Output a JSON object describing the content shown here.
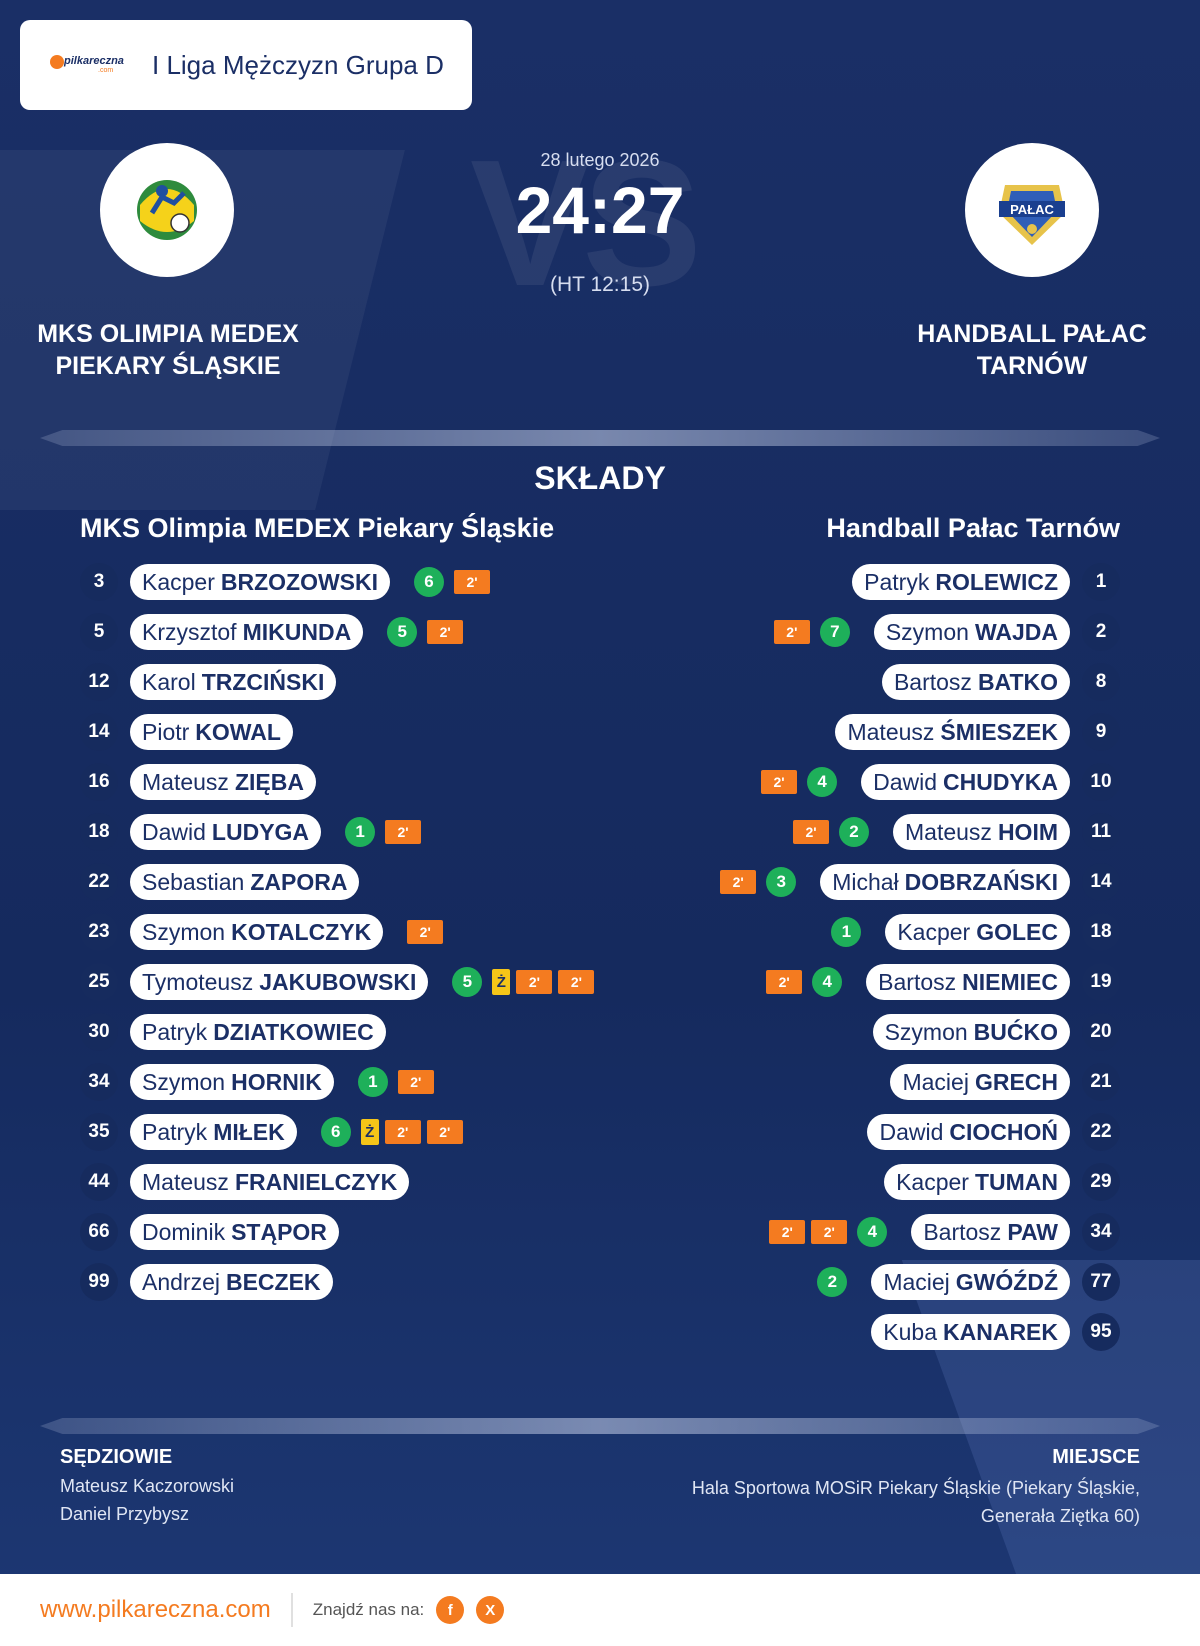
{
  "league": {
    "title": "I Liga Mężczyzn Grupa D",
    "logo_text": "pilkareczna",
    "logo_sub": ".com"
  },
  "match": {
    "date": "28 lutego 2026",
    "score": "24:27",
    "halftime": "(HT 12:15)",
    "vs_watermark": "VS"
  },
  "home": {
    "name_line1": "MKS OLIMPIA MEDEX",
    "name_line2": "PIEKARY ŚLĄSKIE",
    "squad_title": "MKS Olimpia MEDEX Piekary Śląskie"
  },
  "away": {
    "name_line1": "HANDBALL PAŁAC",
    "name_line2": "TARNÓW",
    "squad_title": "Handball Pałac Tarnów",
    "logo_text": "PAŁAC"
  },
  "section_title": "SKŁADY",
  "home_players": [
    {
      "number": "3",
      "first": "Kacper",
      "last": "BRZOZOWSKI",
      "goals": "6",
      "yellow": false,
      "penalties": [
        "2'"
      ]
    },
    {
      "number": "5",
      "first": "Krzysztof",
      "last": "MIKUNDA",
      "goals": "5",
      "yellow": false,
      "penalties": [
        "2'"
      ]
    },
    {
      "number": "12",
      "first": "Karol",
      "last": "TRZCIŃSKI",
      "goals": null,
      "yellow": false,
      "penalties": []
    },
    {
      "number": "14",
      "first": "Piotr",
      "last": "KOWAL",
      "goals": null,
      "yellow": false,
      "penalties": []
    },
    {
      "number": "16",
      "first": "Mateusz",
      "last": "ZIĘBA",
      "goals": null,
      "yellow": false,
      "penalties": []
    },
    {
      "number": "18",
      "first": "Dawid",
      "last": "LUDYGA",
      "goals": "1",
      "yellow": false,
      "penalties": [
        "2'"
      ]
    },
    {
      "number": "22",
      "first": "Sebastian",
      "last": "ZAPORA",
      "goals": null,
      "yellow": false,
      "penalties": []
    },
    {
      "number": "23",
      "first": "Szymon",
      "last": "KOTALCZYK",
      "goals": null,
      "yellow": false,
      "penalties": [
        "2'"
      ]
    },
    {
      "number": "25",
      "first": "Tymoteusz",
      "last": "JAKUBOWSKI",
      "goals": "5",
      "yellow": true,
      "penalties": [
        "2'",
        "2'"
      ]
    },
    {
      "number": "30",
      "first": "Patryk",
      "last": "DZIATKOWIEC",
      "goals": null,
      "yellow": false,
      "penalties": []
    },
    {
      "number": "34",
      "first": "Szymon",
      "last": "HORNIK",
      "goals": "1",
      "yellow": false,
      "penalties": [
        "2'"
      ]
    },
    {
      "number": "35",
      "first": "Patryk",
      "last": "MIŁEK",
      "goals": "6",
      "yellow": true,
      "penalties": [
        "2'",
        "2'"
      ]
    },
    {
      "number": "44",
      "first": "Mateusz",
      "last": "FRANIELCZYK",
      "goals": null,
      "yellow": false,
      "penalties": []
    },
    {
      "number": "66",
      "first": "Dominik",
      "last": "STĄPOR",
      "goals": null,
      "yellow": false,
      "penalties": []
    },
    {
      "number": "99",
      "first": "Andrzej",
      "last": "BECZEK",
      "goals": null,
      "yellow": false,
      "penalties": []
    }
  ],
  "away_players": [
    {
      "number": "1",
      "first": "Patryk",
      "last": "ROLEWICZ",
      "goals": null,
      "yellow": false,
      "penalties": []
    },
    {
      "number": "2",
      "first": "Szymon",
      "last": "WAJDA",
      "goals": "7",
      "yellow": false,
      "penalties": [
        "2'"
      ]
    },
    {
      "number": "8",
      "first": "Bartosz",
      "last": "BATKO",
      "goals": null,
      "yellow": false,
      "penalties": []
    },
    {
      "number": "9",
      "first": "Mateusz",
      "last": "ŚMIESZEK",
      "goals": null,
      "yellow": false,
      "penalties": []
    },
    {
      "number": "10",
      "first": "Dawid",
      "last": "CHUDYKA",
      "goals": "4",
      "yellow": false,
      "penalties": [
        "2'"
      ]
    },
    {
      "number": "11",
      "first": "Mateusz",
      "last": "HOIM",
      "goals": "2",
      "yellow": false,
      "penalties": [
        "2'"
      ]
    },
    {
      "number": "14",
      "first": "Michał",
      "last": "DOBRZAŃSKI",
      "goals": "3",
      "yellow": false,
      "penalties": [
        "2'"
      ]
    },
    {
      "number": "18",
      "first": "Kacper",
      "last": "GOLEC",
      "goals": "1",
      "yellow": false,
      "penalties": []
    },
    {
      "number": "19",
      "first": "Bartosz",
      "last": "NIEMIEC",
      "goals": "4",
      "yellow": false,
      "penalties": [
        "2'"
      ]
    },
    {
      "number": "20",
      "first": "Szymon",
      "last": "BUĆKO",
      "goals": null,
      "yellow": false,
      "penalties": []
    },
    {
      "number": "21",
      "first": "Maciej",
      "last": "GRECH",
      "goals": null,
      "yellow": false,
      "penalties": []
    },
    {
      "number": "22",
      "first": "Dawid",
      "last": "CIOCHOŃ",
      "goals": null,
      "yellow": false,
      "penalties": []
    },
    {
      "number": "29",
      "first": "Kacper",
      "last": "TUMAN",
      "goals": null,
      "yellow": false,
      "penalties": []
    },
    {
      "number": "34",
      "first": "Bartosz",
      "last": "PAW",
      "goals": "4",
      "yellow": false,
      "penalties": [
        "2'",
        "2'"
      ]
    },
    {
      "number": "77",
      "first": "Maciej",
      "last": "GWÓŹDŹ",
      "goals": "2",
      "yellow": false,
      "penalties": []
    },
    {
      "number": "95",
      "first": "Kuba",
      "last": "KANAREK",
      "goals": null,
      "yellow": false,
      "penalties": []
    }
  ],
  "yellow_card_label": "Ż",
  "referees": {
    "label": "SĘDZIOWIE",
    "names": [
      "Mateusz Kaczorowski",
      "Daniel Przybysz"
    ]
  },
  "venue": {
    "label": "MIEJSCE",
    "text": "Hala Sportowa MOSiR Piekary Śląskie (Piekary Śląskie, Generała Ziętka 60)"
  },
  "footer": {
    "url": "www.pilkareczna.com",
    "find_us": "Znajdź nas na:",
    "social": [
      {
        "icon": "facebook-icon",
        "glyph": "f"
      },
      {
        "icon": "x-icon",
        "glyph": "X"
      }
    ]
  },
  "colors": {
    "background": "#1a2f66",
    "accent": "#f47b20",
    "goal": "#1eb05a",
    "yellow_card": "#f5c518"
  }
}
